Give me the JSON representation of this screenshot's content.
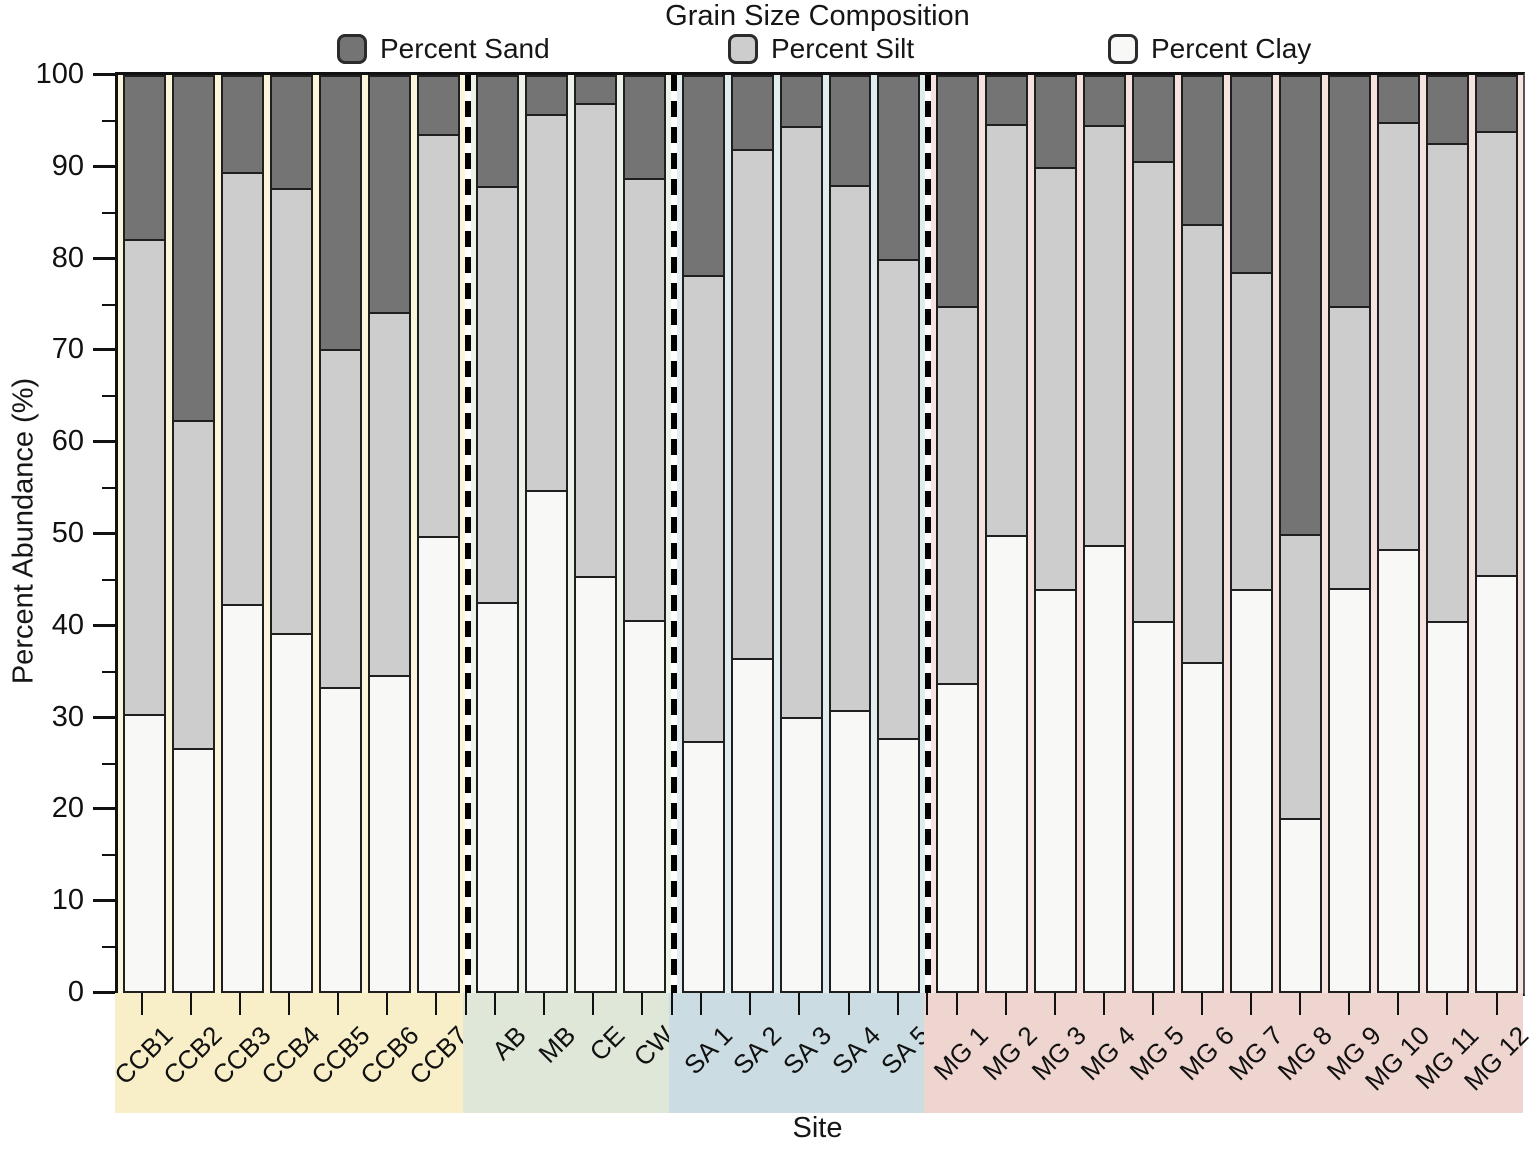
{
  "title": "Grain Size Composition",
  "legend": [
    {
      "label": "Percent Sand",
      "color": "#747474"
    },
    {
      "label": "Percent Silt",
      "color": "#cdcdcd"
    },
    {
      "label": "Percent Clay",
      "color": "#f8f8f6"
    }
  ],
  "y_axis": {
    "label": "Percent Abundance (%)",
    "min": 0,
    "max": 100,
    "major_step": 10,
    "minor_step": 5,
    "tick_labels": [
      "0",
      "10",
      "20",
      "30",
      "40",
      "50",
      "60",
      "70",
      "80",
      "90",
      "100"
    ]
  },
  "x_axis": {
    "label": "Site"
  },
  "chart_data": {
    "type": "bar",
    "subtype": "stacked-percent",
    "title": "Grain Size Composition",
    "xlabel": "Site",
    "ylabel": "Percent Abundance (%)",
    "ylim": [
      0,
      100
    ],
    "legend_position": "top",
    "series_order": [
      "Percent Sand",
      "Percent Silt",
      "Percent Clay"
    ],
    "colors": {
      "sand": "#747474",
      "silt": "#cdcdcd",
      "clay": "#f8f8f6",
      "outline": "#1f1f1f"
    },
    "groups": [
      {
        "band_color": "#f8efc9",
        "plot_tint": "#fbf5dc",
        "sites": [
          {
            "name": "CCB1",
            "sand": 17.7,
            "silt": 52.0,
            "clay": 30.3
          },
          {
            "name": "CCB2",
            "sand": 37.5,
            "silt": 35.9,
            "clay": 26.6
          },
          {
            "name": "CCB3",
            "sand": 10.4,
            "silt": 47.3,
            "clay": 42.3
          },
          {
            "name": "CCB4",
            "sand": 12.1,
            "silt": 48.7,
            "clay": 39.2
          },
          {
            "name": "CCB5",
            "sand": 29.8,
            "silt": 36.9,
            "clay": 33.3
          },
          {
            "name": "CCB6",
            "sand": 25.7,
            "silt": 39.7,
            "clay": 34.6
          },
          {
            "name": "CCB7",
            "sand": 6.2,
            "silt": 44.0,
            "clay": 49.8
          }
        ]
      },
      {
        "band_color": "#dfe8d8",
        "plot_tint": "#eef3ea",
        "sites": [
          {
            "name": "AB",
            "sand": 11.9,
            "silt": 45.5,
            "clay": 42.6
          },
          {
            "name": "MB",
            "sand": 4.1,
            "silt": 41.1,
            "clay": 54.8
          },
          {
            "name": "CE",
            "sand": 2.8,
            "silt": 51.8,
            "clay": 45.4
          },
          {
            "name": "CW",
            "sand": 11.1,
            "silt": 48.3,
            "clay": 40.6
          }
        ]
      },
      {
        "band_color": "#cbdce2",
        "plot_tint": "#e1ecef",
        "sites": [
          {
            "name": "SA 1",
            "sand": 21.7,
            "silt": 50.9,
            "clay": 27.4
          },
          {
            "name": "SA 2",
            "sand": 7.9,
            "silt": 55.7,
            "clay": 36.4
          },
          {
            "name": "SA 3",
            "sand": 5.4,
            "silt": 64.6,
            "clay": 30.0
          },
          {
            "name": "SA 4",
            "sand": 11.8,
            "silt": 57.5,
            "clay": 30.7
          },
          {
            "name": "SA 5",
            "sand": 19.9,
            "silt": 52.4,
            "clay": 27.7
          }
        ]
      },
      {
        "band_color": "#eed5d0",
        "plot_tint": "#f6e3df",
        "sites": [
          {
            "name": "MG 1",
            "sand": 25.1,
            "silt": 41.2,
            "clay": 33.7
          },
          {
            "name": "MG 2",
            "sand": 5.1,
            "silt": 45.0,
            "clay": 49.9
          },
          {
            "name": "MG 3",
            "sand": 9.8,
            "silt": 46.2,
            "clay": 44.0
          },
          {
            "name": "MG 4",
            "sand": 5.2,
            "silt": 46.0,
            "clay": 48.8
          },
          {
            "name": "MG 5",
            "sand": 9.2,
            "silt": 50.3,
            "clay": 40.5
          },
          {
            "name": "MG 6",
            "sand": 16.1,
            "silt": 47.9,
            "clay": 36.0
          },
          {
            "name": "MG 7",
            "sand": 21.3,
            "silt": 34.7,
            "clay": 44.0
          },
          {
            "name": "MG 8",
            "sand": 50.0,
            "silt": 31.1,
            "clay": 18.9
          },
          {
            "name": "MG 9",
            "sand": 25.0,
            "silt": 30.9,
            "clay": 44.1
          },
          {
            "name": "MG 10",
            "sand": 4.9,
            "silt": 46.7,
            "clay": 48.4
          },
          {
            "name": "MG 11",
            "sand": 7.2,
            "silt": 52.3,
            "clay": 40.5
          },
          {
            "name": "MG 12",
            "sand": 5.9,
            "silt": 48.6,
            "clay": 45.5
          }
        ]
      }
    ]
  }
}
